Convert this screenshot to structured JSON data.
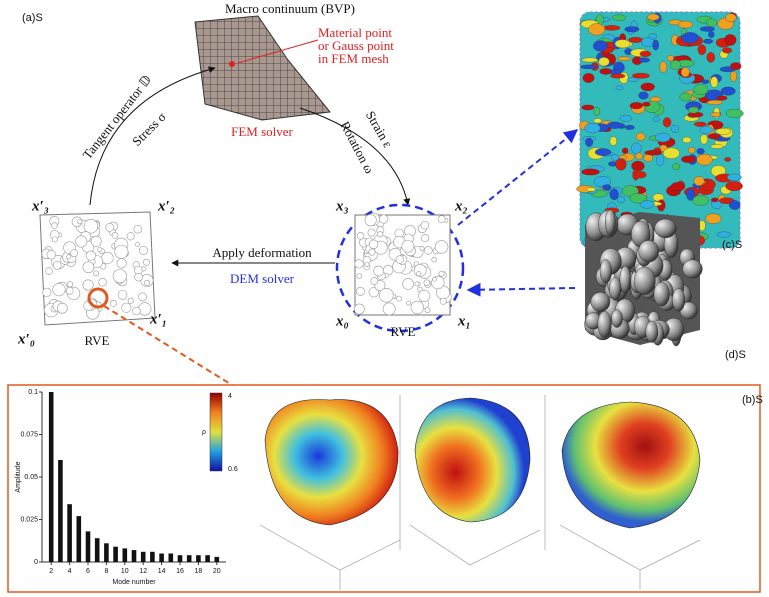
{
  "panel_labels": {
    "a": "(a)S",
    "b": "(b)S",
    "c": "(c)S",
    "d": "(d)S"
  },
  "macro": {
    "title": "Macro continuum (BVP)",
    "point_note": [
      "Material point",
      "or Gauss point",
      "in FEM mesh"
    ],
    "solver": "FEM solver"
  },
  "arcs": {
    "tangent": "Tangent operator 𝔻",
    "stress": "Stress σ",
    "strain": "Strain ε",
    "rotation": "Rotation ω"
  },
  "deformation": {
    "apply": "Apply deformation",
    "solver": "DEM solver"
  },
  "rve_left": {
    "label": "RVE",
    "corners": [
      "x′₃",
      "x′₂",
      "x′₀",
      "x′₁"
    ]
  },
  "rve_right": {
    "label": "RVE",
    "corners": [
      "x₃",
      "x₂",
      "x₀",
      "x₁"
    ]
  },
  "colorbar": {
    "label": "ρ",
    "max": "4",
    "min": "0.6"
  },
  "chart_data": {
    "type": "bar",
    "x_label": "Mode number",
    "y_label": "Amplitude",
    "x": [
      2,
      3,
      4,
      5,
      6,
      7,
      8,
      9,
      10,
      11,
      12,
      13,
      14,
      15,
      16,
      17,
      18,
      19,
      20
    ],
    "values": [
      0.1,
      0.06,
      0.034,
      0.027,
      0.018,
      0.014,
      0.011,
      0.009,
      0.008,
      0.007,
      0.006,
      0.006,
      0.005,
      0.005,
      0.004,
      0.004,
      0.004,
      0.004,
      0.003
    ],
    "color": "#111111",
    "xlim": [
      1,
      21
    ],
    "xticks": [
      2,
      4,
      6,
      8,
      10,
      12,
      14,
      16,
      18,
      20
    ],
    "ylim": [
      0,
      0.1
    ],
    "yticks": [
      0,
      0.025,
      0.05,
      0.075,
      0.1
    ]
  }
}
